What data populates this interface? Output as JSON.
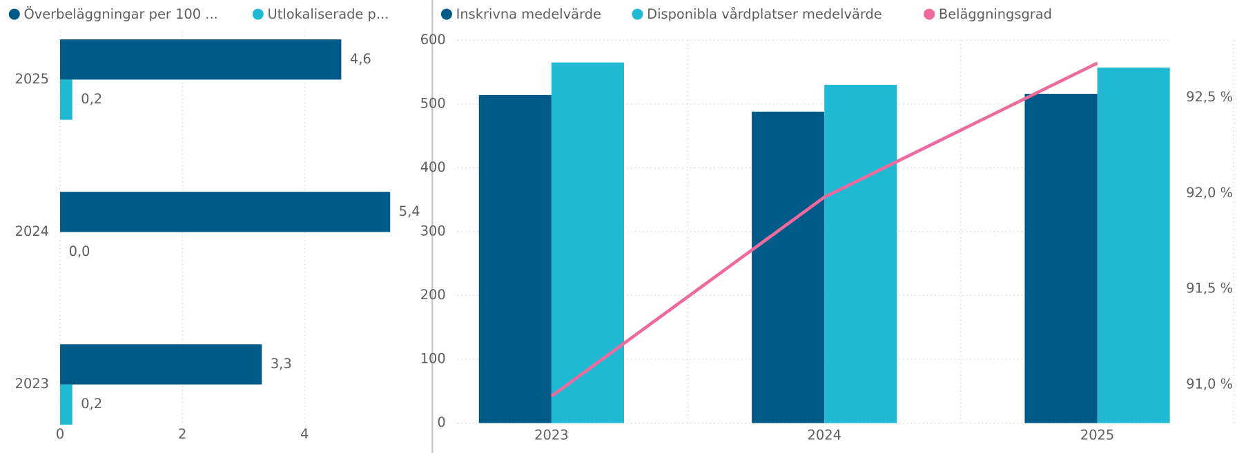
{
  "chart_data": [
    {
      "type": "hbar",
      "categories": [
        "2025",
        "2024",
        "2023"
      ],
      "series": [
        {
          "name": "Överbeläggningar per 100 ...",
          "color": "#005a87",
          "values": [
            4.6,
            5.4,
            3.3
          ],
          "value_labels": [
            "4,6",
            "5,4",
            "3,3"
          ]
        },
        {
          "name": "Utlokaliserade p...",
          "color": "#20b9d3",
          "values": [
            0.2,
            0.0,
            0.2
          ],
          "value_labels": [
            "0,2",
            "0,0",
            "0,2"
          ]
        }
      ],
      "xlim": [
        0,
        6
      ],
      "xticks": [
        0,
        2,
        4
      ],
      "grid": true
    },
    {
      "type": "bar-line",
      "categories": [
        "2023",
        "2024",
        "2025"
      ],
      "series": [
        {
          "name": "Inskrivna medelvärde",
          "color": "#005a87",
          "values": [
            514,
            488,
            516
          ]
        },
        {
          "name": "Disponibla vårdplatser medelvärde",
          "color": "#20b9d3",
          "values": [
            565,
            530,
            557
          ]
        },
        {
          "name": "Beläggningsgrad",
          "color": "#ee6a9e",
          "values": [
            90.94,
            91.98,
            92.68
          ],
          "axis": "y2"
        }
      ],
      "ylim": [
        0,
        600
      ],
      "yticks": [
        0,
        100,
        200,
        300,
        400,
        500,
        600
      ],
      "y2lim": [
        90.8,
        92.8
      ],
      "y2ticks": [
        {
          "value": 91.0,
          "label": "91,0 %"
        },
        {
          "value": 91.5,
          "label": "91,5 %"
        },
        {
          "value": 92.0,
          "label": "92,0 %"
        },
        {
          "value": 92.5,
          "label": "92,5 %"
        }
      ],
      "grid": true
    }
  ]
}
